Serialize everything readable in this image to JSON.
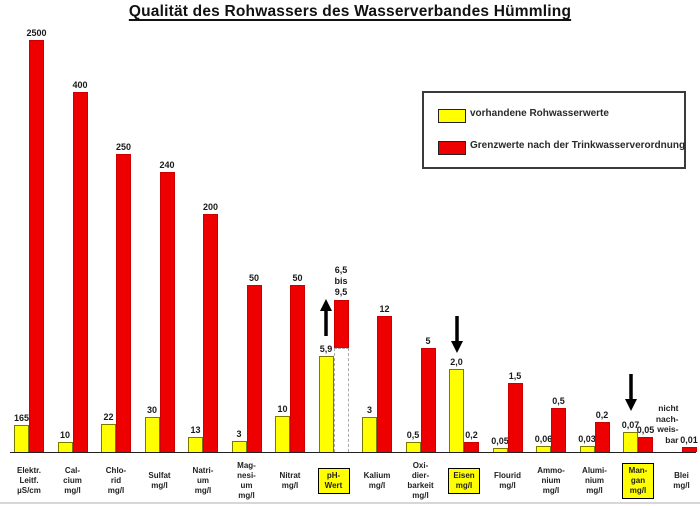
{
  "title": "Qualität des Rohwassers des Wasserverbandes Hümmling",
  "legend": {
    "items": [
      {
        "name": "raw",
        "label": "vorhandene Rohwasserwerte",
        "color": "#ffff00"
      },
      {
        "name": "limit",
        "label": "Grenzwerte nach der Trinkwasserverordnung",
        "color": "#ee0000"
      }
    ]
  },
  "chart_data": {
    "type": "bar",
    "title": "Qualität des Rohwassers des Wasserverbandes Hümmling",
    "series_names": [
      "vorhandene Rohwasserwerte",
      "Grenzwerte nach der Trinkwasserverordnung"
    ],
    "colors": {
      "raw": "#ffff00",
      "limit": "#ee0000"
    },
    "legend_position": "top-right",
    "grid": false,
    "note": "bar heights are as drawn in the original (non-linear hand scale); display_h values are pixel heights",
    "categories": [
      {
        "label_lines": [
          "Elektr.",
          "Leitf.",
          "µS/cm"
        ],
        "raw_label": "165",
        "raw_value": 165,
        "raw_h": 27,
        "limit_label": "2500",
        "limit_value": 2500,
        "limit_h": 412
      },
      {
        "label_lines": [
          "Cal-",
          "cium",
          "mg/l"
        ],
        "raw_label": "10",
        "raw_value": 10,
        "raw_h": 10,
        "limit_label": "400",
        "limit_value": 400,
        "limit_h": 360
      },
      {
        "label_lines": [
          "Chlo-",
          "rid",
          "mg/l"
        ],
        "raw_label": "22",
        "raw_value": 22,
        "raw_h": 28,
        "limit_label": "250",
        "limit_value": 250,
        "limit_h": 298
      },
      {
        "label_lines": [
          "Sulfat",
          "mg/l"
        ],
        "raw_label": "30",
        "raw_value": 30,
        "raw_h": 35,
        "limit_label": "240",
        "limit_value": 240,
        "limit_h": 280
      },
      {
        "label_lines": [
          "Natri-",
          "um",
          "mg/l"
        ],
        "raw_label": "13",
        "raw_value": 13,
        "raw_h": 15,
        "limit_label": "200",
        "limit_value": 200,
        "limit_h": 238
      },
      {
        "label_lines": [
          "Mag-",
          "nesi-",
          "um",
          "mg/l"
        ],
        "raw_label": "3",
        "raw_value": 3,
        "raw_h": 11,
        "limit_label": "50",
        "limit_value": 50,
        "limit_h": 167
      },
      {
        "label_lines": [
          "Nitrat",
          "mg/l"
        ],
        "raw_label": "10",
        "raw_value": 10,
        "raw_h": 36,
        "limit_label": "50",
        "limit_value": 50,
        "limit_h": 167
      },
      {
        "label_lines": [
          "pH-",
          "Wert"
        ],
        "raw_label": "5,9",
        "raw_value": 5.9,
        "raw_h": 96,
        "limit_label_lines": [
          "6,5",
          "bis",
          "9,5"
        ],
        "limit_value": "6,5 bis 9,5",
        "range": {
          "red_h": 48,
          "white_h": 104
        },
        "highlight": true,
        "arrow": "up"
      },
      {
        "label_lines": [
          "Kalium",
          "mg/l"
        ],
        "raw_label": "3",
        "raw_value": 3,
        "raw_h": 35,
        "limit_label": "12",
        "limit_value": 12,
        "limit_h": 136
      },
      {
        "label_lines": [
          "Oxi-",
          "dier-",
          "barkeit",
          "mg/l"
        ],
        "raw_label": "0,5",
        "raw_value": 0.5,
        "raw_h": 10,
        "limit_label": "5",
        "limit_value": 5,
        "limit_h": 104
      },
      {
        "label_lines": [
          "Eisen",
          "mg/l"
        ],
        "raw_label": "2,0",
        "raw_value": 2.0,
        "raw_h": 83,
        "limit_label": "0,2",
        "limit_value": 0.2,
        "limit_h": 10,
        "highlight": true,
        "arrow": "down"
      },
      {
        "label_lines": [
          "Flourid",
          "mg/l"
        ],
        "raw_label": "0,05",
        "raw_value": 0.05,
        "raw_h": 4,
        "limit_label": "1,5",
        "limit_value": 1.5,
        "limit_h": 69
      },
      {
        "label_lines": [
          "Ammo-",
          "nium",
          "mg/l"
        ],
        "raw_label": "0,06",
        "raw_value": 0.06,
        "raw_h": 6,
        "limit_label": "0,5",
        "limit_value": 0.5,
        "limit_h": 44
      },
      {
        "label_lines": [
          "Alumi-",
          "nium",
          "mg/l"
        ],
        "raw_label": "0,03",
        "raw_value": 0.03,
        "raw_h": 6,
        "limit_label": "0,2",
        "limit_value": 0.2,
        "limit_h": 30
      },
      {
        "label_lines": [
          "Man-",
          "gan",
          "mg/l"
        ],
        "raw_label": "0,07",
        "raw_value": 0.07,
        "raw_h": 20,
        "limit_label": "0,05",
        "limit_value": 0.05,
        "limit_h": 15,
        "highlight": true,
        "arrow": "down"
      },
      {
        "label_lines": [
          "Blei",
          "mg/l"
        ],
        "raw_note_lines": [
          "nicht",
          "nach-",
          "weis-",
          "bar"
        ],
        "raw_value": null,
        "raw_h": 0,
        "limit_label": "0,01",
        "limit_value": 0.01,
        "limit_h": 5
      }
    ]
  }
}
